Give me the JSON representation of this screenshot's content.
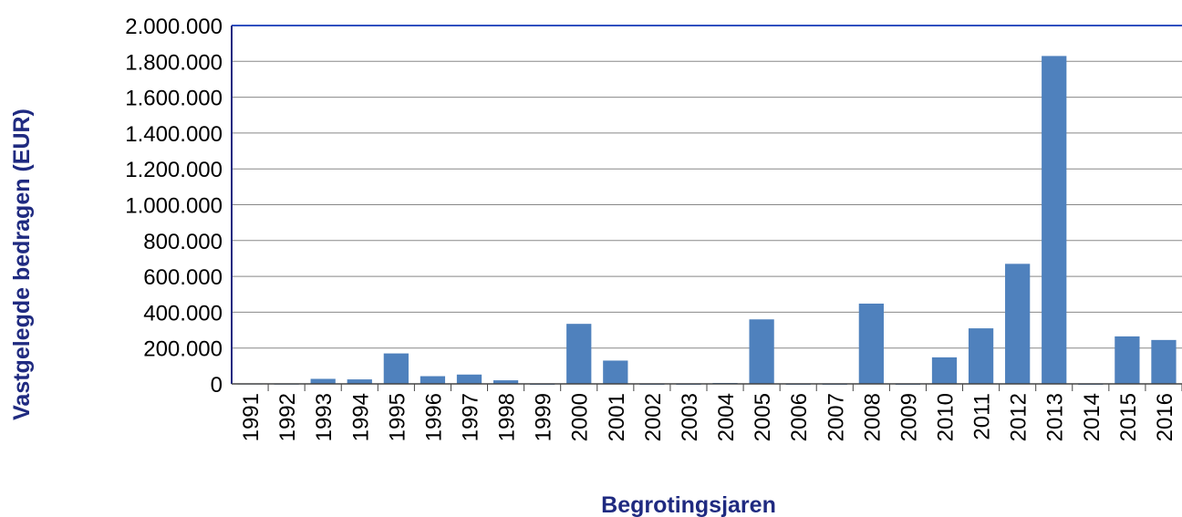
{
  "chart_data": {
    "type": "bar",
    "x_label": "Begrotingsjaren",
    "y_label": "Vastgelegde bedragen (EUR)",
    "categories": [
      "1991",
      "1992",
      "1993",
      "1994",
      "1995",
      "1996",
      "1997",
      "1998",
      "1999",
      "2000",
      "2001",
      "2002",
      "2003",
      "2004",
      "2005",
      "2006",
      "2007",
      "2008",
      "2009",
      "2010",
      "2011",
      "2012",
      "2013",
      "2014",
      "2015",
      "2016"
    ],
    "values": [
      2000,
      1000,
      28000,
      25000,
      170000,
      43000,
      52000,
      20000,
      0,
      335000,
      130000,
      0,
      0,
      5000,
      360000,
      0,
      0,
      448000,
      0,
      148000,
      310000,
      670000,
      1830000,
      0,
      265000,
      245000
    ],
    "color": "#4f81bd",
    "ylim": [
      0,
      2000000
    ],
    "yticks": [
      0,
      {
        "value": 200000,
        "label": "200.000"
      },
      {
        "value": 400000,
        "label": "400.000"
      },
      {
        "value": 600000,
        "label": "600.000"
      },
      {
        "value": 800000,
        "label": "800.000"
      },
      {
        "value": 1000000,
        "label": "1.000.000"
      },
      {
        "value": 1200000,
        "label": "1.200.000"
      },
      {
        "value": 1400000,
        "label": "1.400.000"
      },
      {
        "value": 1600000,
        "label": "1.600.000"
      },
      {
        "value": 1800000,
        "label": "1.800.000"
      },
      {
        "value": 2000000,
        "label": "2.000.000"
      }
    ],
    "grid": true
  }
}
